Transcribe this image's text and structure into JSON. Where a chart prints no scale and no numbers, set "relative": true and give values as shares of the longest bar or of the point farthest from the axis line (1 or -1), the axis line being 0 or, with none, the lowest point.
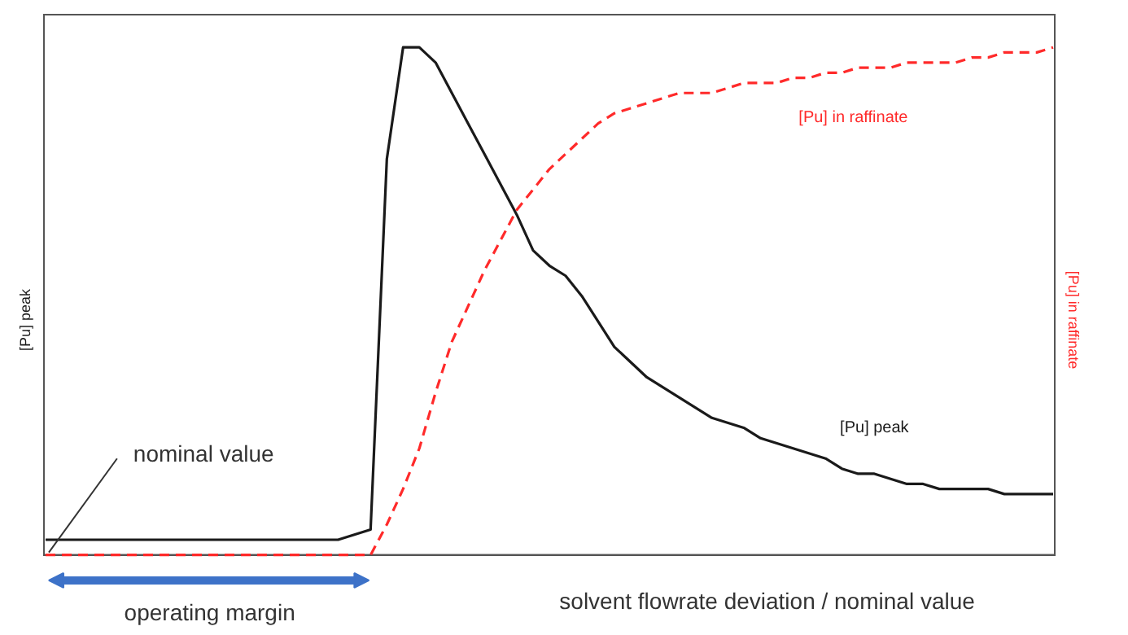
{
  "chart_data": {
    "type": "line",
    "relative": true,
    "xlabel": "solvent flowrate deviation / nominal value",
    "ylabel": "[Pu] peak",
    "y2label": "[Pu] in raffinate",
    "categories": [
      null,
      null,
      null,
      null,
      null,
      null,
      null,
      null,
      null,
      null,
      null,
      null,
      null,
      null,
      null,
      null,
      null,
      null,
      null,
      null,
      null,
      null,
      null,
      null,
      null,
      null,
      null,
      null,
      null,
      null,
      null,
      null,
      null,
      null,
      null,
      null,
      null,
      null,
      null,
      null,
      null,
      null,
      null,
      null,
      null,
      null,
      null,
      null,
      null,
      null,
      null,
      null,
      null,
      null,
      null,
      null,
      null,
      null,
      null,
      null,
      null,
      null,
      null
    ],
    "series": [
      {
        "name": "[Pu] peak",
        "color": "#1a1a1a",
        "line_style": "solid",
        "values": [
          0.03,
          0.03,
          0.03,
          0.03,
          0.03,
          0.03,
          0.03,
          0.03,
          0.03,
          0.03,
          0.03,
          0.03,
          0.03,
          0.03,
          0.03,
          0.03,
          0.03,
          0.03,
          0.03,
          0.04,
          0.05,
          0.78,
          1.0,
          1.0,
          0.97,
          0.91,
          0.85,
          0.79,
          0.73,
          0.67,
          0.6,
          0.57,
          0.55,
          0.51,
          0.46,
          0.41,
          0.38,
          0.35,
          0.33,
          0.31,
          0.29,
          0.27,
          0.26,
          0.25,
          0.23,
          0.22,
          0.21,
          0.2,
          0.19,
          0.17,
          0.16,
          0.16,
          0.15,
          0.14,
          0.14,
          0.13,
          0.13,
          0.13,
          0.13,
          0.12,
          0.12,
          0.12,
          0.12
        ]
      },
      {
        "name": "[Pu] in raffinate",
        "color": "#ff2a2a",
        "line_style": "dashed",
        "values": [
          0,
          0,
          0,
          0,
          0,
          0,
          0,
          0,
          0,
          0,
          0,
          0,
          0,
          0,
          0,
          0,
          0,
          0,
          0,
          0,
          0,
          0.06,
          0.13,
          0.21,
          0.32,
          0.42,
          0.49,
          0.56,
          0.62,
          0.68,
          0.72,
          0.76,
          0.79,
          0.82,
          0.85,
          0.87,
          0.88,
          0.89,
          0.9,
          0.91,
          0.91,
          0.91,
          0.92,
          0.93,
          0.93,
          0.93,
          0.94,
          0.94,
          0.95,
          0.95,
          0.96,
          0.96,
          0.96,
          0.97,
          0.97,
          0.97,
          0.97,
          0.98,
          0.98,
          0.99,
          0.99,
          0.99,
          1.0
        ]
      }
    ],
    "annotations": [
      "nominal value",
      "operating margin"
    ],
    "grid": false,
    "legend": false
  }
}
